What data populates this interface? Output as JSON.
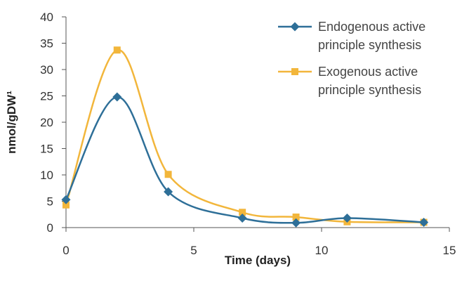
{
  "chart_data": {
    "type": "line",
    "smooth": true,
    "xlabel": "Time (days)",
    "ylabel": "nmol/gDW¹",
    "xlim": [
      0,
      15
    ],
    "ylim": [
      0,
      40
    ],
    "xticks": [
      0,
      5,
      10,
      15
    ],
    "yticks": [
      0,
      5,
      10,
      15,
      20,
      25,
      30,
      35,
      40
    ],
    "grid": false,
    "legend_position": "top-right",
    "series": [
      {
        "name_lines": [
          "Endogenous active",
          "principle synthesis"
        ],
        "color": "#2e6f98",
        "marker": "diamond",
        "x": [
          0,
          2,
          4,
          6.9,
          9,
          11,
          14
        ],
        "y": [
          5.3,
          24.8,
          6.8,
          1.8,
          0.9,
          1.8,
          1.0
        ]
      },
      {
        "name_lines": [
          "Exogenous active",
          "principle synthesis"
        ],
        "color": "#f2b63b",
        "marker": "square",
        "x": [
          0,
          2,
          4,
          6.9,
          9,
          11,
          14
        ],
        "y": [
          4.3,
          33.7,
          10.1,
          2.9,
          2.0,
          1.1,
          1.0
        ]
      }
    ]
  }
}
